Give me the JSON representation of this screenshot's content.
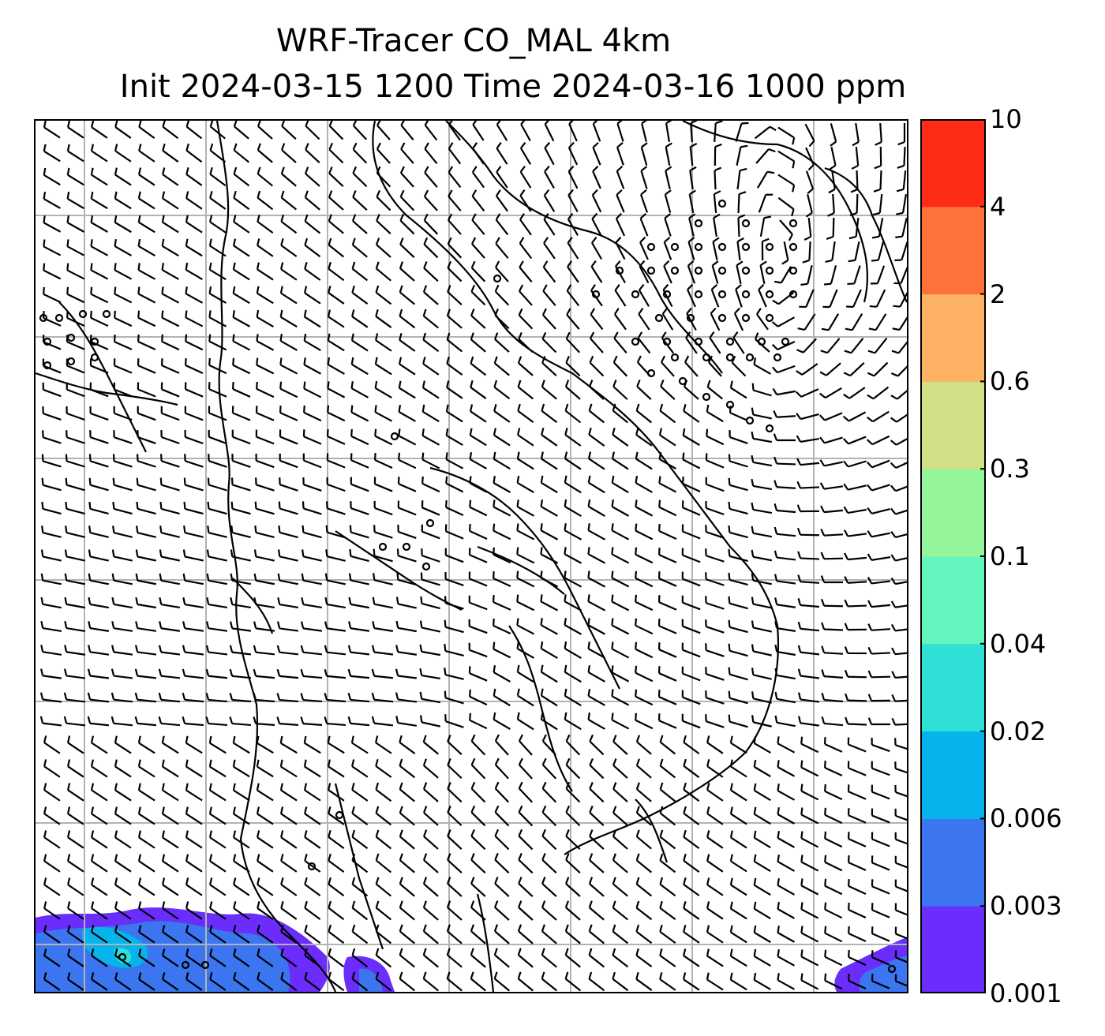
{
  "title": {
    "line1": "WRF-Tracer CO_MAL 4km",
    "line2": "Init 2024-03-15 1200 Time 2024-03-16 1000 ppm"
  },
  "colorbar": {
    "levels": [
      "0.001",
      "0.003",
      "0.006",
      "0.02",
      "0.04",
      "0.1",
      "0.3",
      "0.6",
      "2",
      "4",
      "10"
    ],
    "colors": [
      "#6a2dfc",
      "#3b75f0",
      "#05b4ec",
      "#2ee0d6",
      "#62f5be",
      "#95f59a",
      "#cfe184",
      "#fdb264",
      "#fe7139",
      "#fe2c17"
    ]
  },
  "map": {
    "background": "#ffffff",
    "gridline_color": "#b3b3b3",
    "coastline_color": "#000000",
    "barb_color": "#000000",
    "tracer_plume_colors": [
      "#6a2dfc",
      "#3b75f0",
      "#05b4ec",
      "#2ee0d6"
    ]
  }
}
